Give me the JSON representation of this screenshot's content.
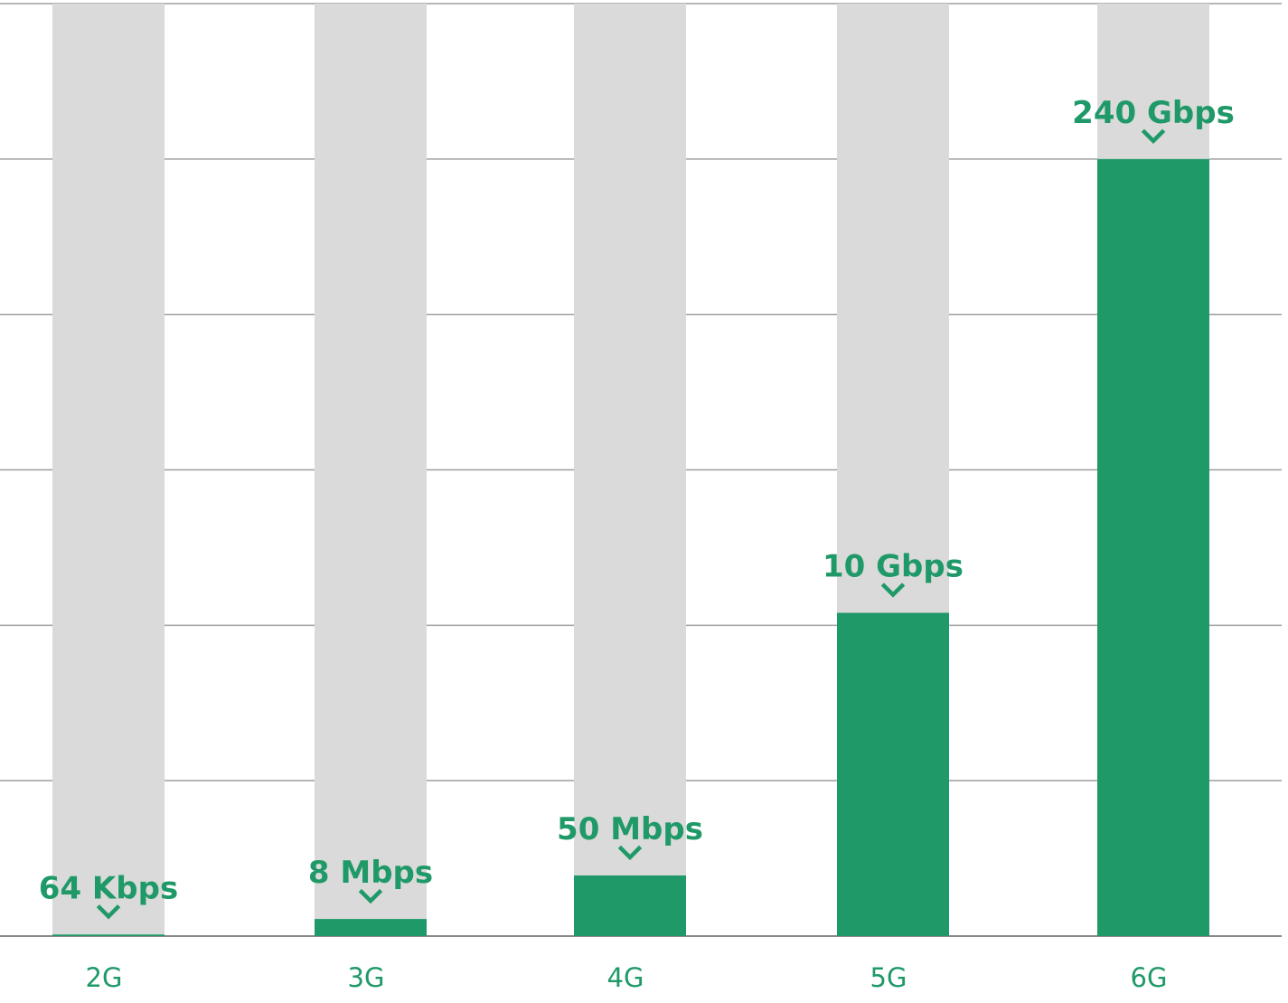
{
  "chart_data": {
    "type": "bar",
    "categories": [
      "2G",
      "3G",
      "4G",
      "5G",
      "6G"
    ],
    "values": [
      0.1,
      1.1,
      3.9,
      20.8,
      50
    ],
    "value_labels": [
      "64 Kbps",
      "8 Mbps",
      "50 Mbps",
      "10 Gbps",
      "240 Gbps"
    ],
    "ylim": [
      0,
      60
    ],
    "y_ticks": [
      0,
      10,
      20,
      30,
      40,
      50,
      60
    ],
    "title": "",
    "xlabel": "",
    "ylabel": "",
    "grid": true,
    "legend": "none",
    "colors": {
      "bar": "#1f9968",
      "track": "#d9dad9",
      "label": "#1f9968",
      "grid": "#9e9e9e"
    }
  }
}
